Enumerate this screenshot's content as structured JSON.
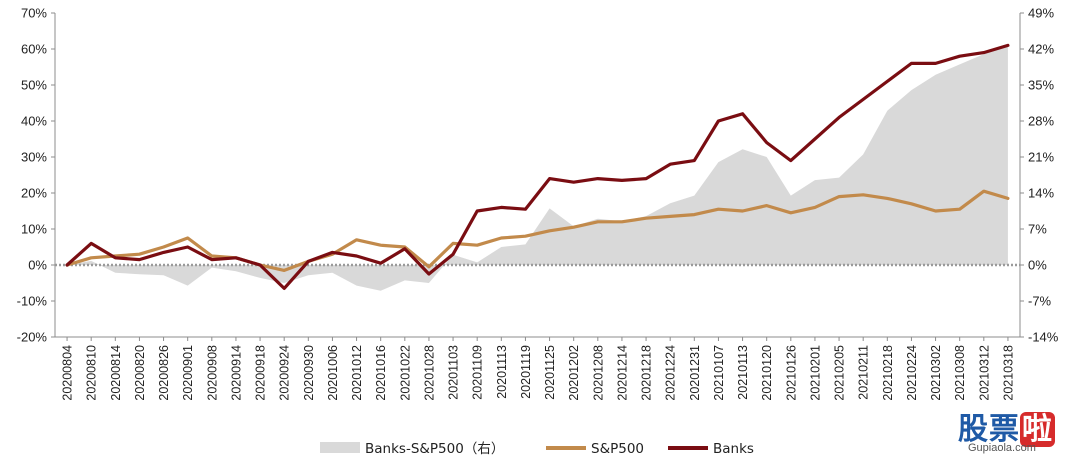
{
  "chart_data": {
    "type": "line",
    "dual_axis": true,
    "title": "",
    "xlabel": "",
    "ylabel_left": "",
    "ylabel_right": "",
    "ylim_left": [
      -0.2,
      0.7
    ],
    "ylim_right": [
      -0.14,
      0.49
    ],
    "yticks_left": [
      "70%",
      "60%",
      "50%",
      "40%",
      "30%",
      "20%",
      "10%",
      "0%",
      "-10%",
      "-20%"
    ],
    "yticks_right": [
      "49%",
      "42%",
      "35%",
      "28%",
      "21%",
      "14%",
      "7%",
      "0%",
      "-7%",
      "-14%"
    ],
    "x_tick_labels": [
      "20200804",
      "20200810",
      "20200814",
      "20200820",
      "20200826",
      "20200901",
      "20200908",
      "20200914",
      "20200918",
      "20200924",
      "20200930",
      "20201006",
      "20201012",
      "20201016",
      "20201022",
      "20201028",
      "20201103",
      "20201109",
      "20201113",
      "20201119",
      "20201125",
      "20201202",
      "20201208",
      "20201214",
      "20201218",
      "20201224",
      "20201231",
      "20210107",
      "20210113",
      "20210120",
      "20210126",
      "20210201",
      "20210205",
      "20210211",
      "20210218",
      "20210224",
      "20210302",
      "20210308",
      "20210312",
      "20210318"
    ],
    "legend_position": "bottom-center",
    "grid": false,
    "series": [
      {
        "name": "Banks-S&P500（右）",
        "type": "area",
        "axis": "right",
        "color": "#d9d9d9",
        "x": [
          0,
          1,
          2,
          3,
          4,
          5,
          6,
          7,
          8,
          9,
          10,
          11,
          12,
          13,
          14,
          15,
          16,
          17,
          18,
          19,
          20,
          21,
          22,
          23,
          24,
          25,
          26,
          27,
          28,
          29,
          30,
          31,
          32,
          33,
          34,
          35,
          36,
          37,
          38,
          39
        ],
        "values": [
          0.0,
          0.008,
          -0.015,
          -0.018,
          -0.02,
          -0.04,
          -0.005,
          -0.012,
          -0.025,
          -0.035,
          -0.02,
          -0.015,
          -0.04,
          -0.05,
          -0.03,
          -0.035,
          0.02,
          0.005,
          0.035,
          0.04,
          0.11,
          0.075,
          0.09,
          0.085,
          0.095,
          0.12,
          0.135,
          0.2,
          0.225,
          0.21,
          0.135,
          0.165,
          0.17,
          0.215,
          0.3,
          0.34,
          0.37,
          0.39,
          0.41,
          0.43
        ]
      },
      {
        "name": "S&P500",
        "type": "line",
        "axis": "left",
        "color": "#c28a4b",
        "x": [
          0,
          1,
          2,
          3,
          4,
          5,
          6,
          7,
          8,
          9,
          10,
          11,
          12,
          13,
          14,
          15,
          16,
          17,
          18,
          19,
          20,
          21,
          22,
          23,
          24,
          25,
          26,
          27,
          28,
          29,
          30,
          31,
          32,
          33,
          34,
          35,
          36,
          37,
          38,
          39
        ],
        "values": [
          0.0,
          0.02,
          0.025,
          0.03,
          0.05,
          0.075,
          0.025,
          0.02,
          0.0,
          -0.015,
          0.01,
          0.03,
          0.07,
          0.055,
          0.05,
          -0.005,
          0.06,
          0.055,
          0.075,
          0.08,
          0.095,
          0.105,
          0.12,
          0.12,
          0.13,
          0.135,
          0.14,
          0.155,
          0.15,
          0.165,
          0.145,
          0.16,
          0.19,
          0.195,
          0.185,
          0.17,
          0.15,
          0.155,
          0.205,
          0.185
        ]
      },
      {
        "name": "Banks",
        "type": "line",
        "axis": "left",
        "color": "#7a0d12",
        "x": [
          0,
          1,
          2,
          3,
          4,
          5,
          6,
          7,
          8,
          9,
          10,
          11,
          12,
          13,
          14,
          15,
          16,
          17,
          18,
          19,
          20,
          21,
          22,
          23,
          24,
          25,
          26,
          27,
          28,
          29,
          30,
          31,
          32,
          33,
          34,
          35,
          36,
          37,
          38,
          39
        ],
        "values": [
          0.0,
          0.06,
          0.02,
          0.015,
          0.035,
          0.05,
          0.015,
          0.02,
          0.0,
          -0.065,
          0.01,
          0.035,
          0.025,
          0.005,
          0.045,
          -0.025,
          0.03,
          0.15,
          0.16,
          0.155,
          0.24,
          0.23,
          0.24,
          0.235,
          0.24,
          0.28,
          0.29,
          0.4,
          0.42,
          0.34,
          0.29,
          0.35,
          0.41,
          0.46,
          0.51,
          0.56,
          0.56,
          0.58,
          0.59,
          0.61
        ]
      }
    ]
  },
  "watermark": {
    "cn_1": "股",
    "cn_2": "票",
    "cn_3": "啦",
    "en": "Gupiaola.com"
  }
}
